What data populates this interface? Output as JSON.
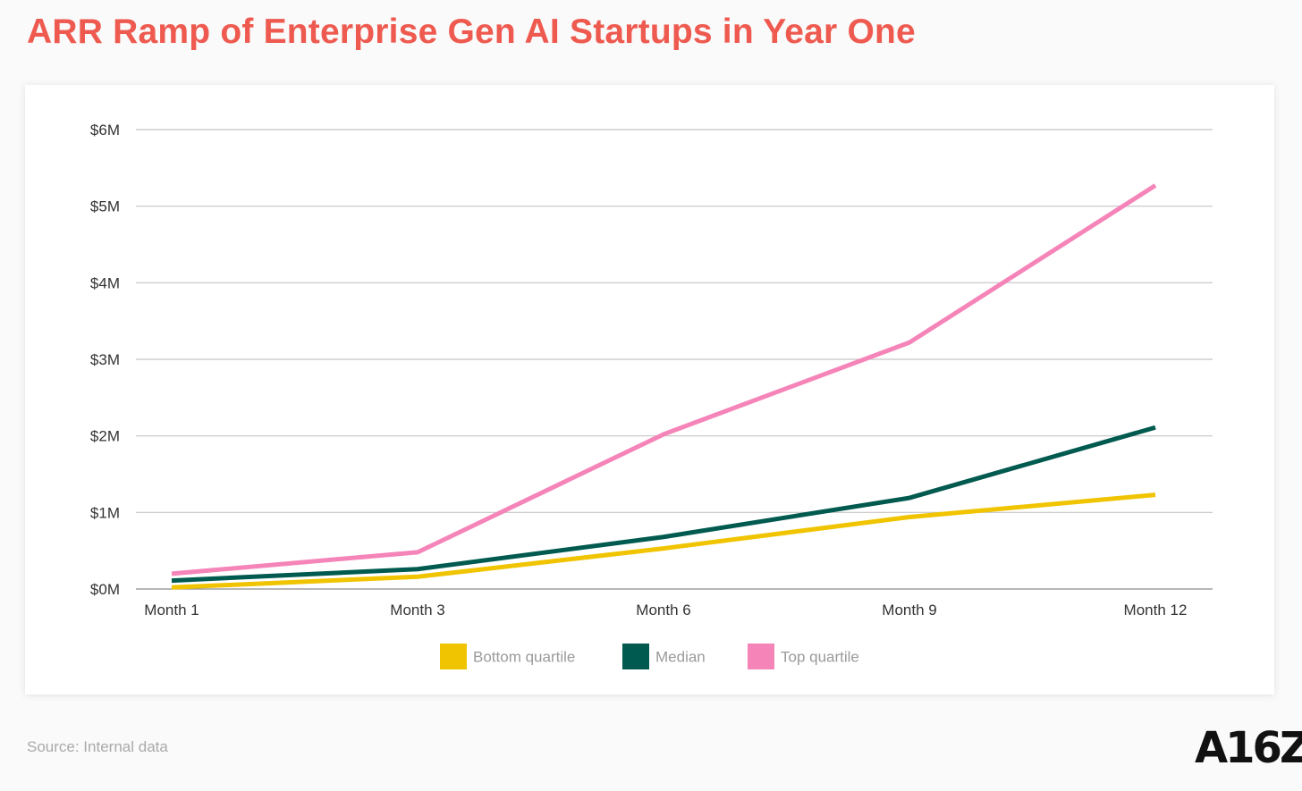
{
  "title": "ARR Ramp of Enterprise Gen AI Startups in Year One",
  "source": "Source: Internal data",
  "logo": "A16Z",
  "colors": {
    "title": "#ee5a4f",
    "gridline": "#c4c4c4",
    "axis": "#8a8a8a"
  },
  "chart_data": {
    "type": "line",
    "title": "ARR Ramp of Enterprise Gen AI Startups in Year One",
    "xlabel": "",
    "ylabel": "",
    "categories": [
      "Month 1",
      "Month 3",
      "Month 6",
      "Month 9",
      "Month 12"
    ],
    "ylim": [
      0,
      6
    ],
    "yticks": [
      0,
      1,
      2,
      3,
      4,
      5,
      6
    ],
    "ytick_labels": [
      "$0M",
      "$1M",
      "$2M",
      "$3M",
      "$4M",
      "$5M",
      "$6M"
    ],
    "grid": true,
    "legend_position": "bottom-center",
    "series": [
      {
        "name": "Bottom quartile",
        "color": "#f0c400",
        "values": [
          0.02,
          0.16,
          0.53,
          0.94,
          1.23
        ]
      },
      {
        "name": "Median",
        "color": "#005a4f",
        "values": [
          0.11,
          0.26,
          0.68,
          1.19,
          2.11
        ]
      },
      {
        "name": "Top quartile",
        "color": "#f584b8",
        "values": [
          0.2,
          0.48,
          2.02,
          3.22,
          5.27
        ]
      }
    ]
  }
}
